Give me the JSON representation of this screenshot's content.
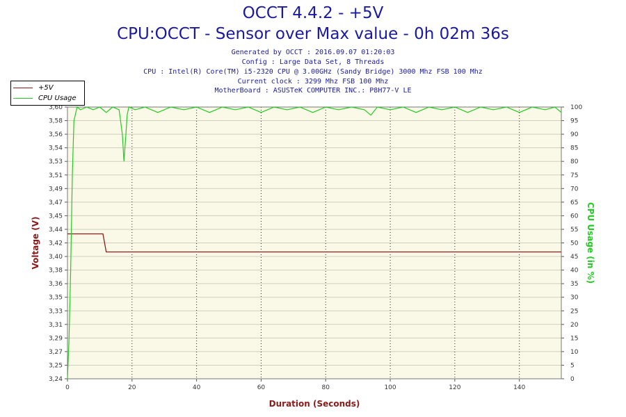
{
  "header": {
    "title": "OCCT 4.4.2 - +5V",
    "subtitle": "CPU:OCCT - Sensor over Max value - 0h 02m 36s",
    "info_lines": [
      "Generated by OCCT : 2016.09.07 01:20:03",
      "Config : Large Data Set, 8 Threads",
      "CPU : Intel(R) Core(TM) i5-2320 CPU @ 3.00GHz (Sandy Bridge) 3000 Mhz FSB 100 Mhz",
      "Current clock : 3299 Mhz FSB 100 Mhz",
      "MotherBoard : ASUSTeK COMPUTER INC.: P8H77-V LE"
    ]
  },
  "legend": [
    {
      "label": "+5V",
      "color": "#8b1a1a"
    },
    {
      "label": "CPU Usage",
      "color": "#22cc22"
    }
  ],
  "colors": {
    "plot_bg": "#faf8e6",
    "voltage": "#8b1a1a",
    "cpu": "#22cc22",
    "title": "#1a1aa0",
    "left_axis": "#8b1a1a",
    "right_axis": "#22cc22",
    "x_axis": "#8b1a1a"
  },
  "chart_data": {
    "type": "line",
    "title": "OCCT 4.4.2 - +5V",
    "xlabel": "Duration (Seconds)",
    "ylabel_left": "Voltage (V)",
    "ylabel_right": "CPU Usage (in %)",
    "xlim": [
      0,
      153
    ],
    "ylim_left": [
      3.24,
      3.6
    ],
    "ylim_right": [
      0,
      100
    ],
    "x_ticks": [
      "0",
      "20",
      "40",
      "60",
      "80",
      "100",
      "120",
      "140"
    ],
    "x_tick_values": [
      0,
      20,
      40,
      60,
      80,
      100,
      120,
      140
    ],
    "y_left_ticks": [
      "3,60",
      "3,58",
      "3,56",
      "3,54",
      "3,53",
      "3,51",
      "3,49",
      "3,47",
      "3,45",
      "3,44",
      "3,42",
      "3,40",
      "3,38",
      "3,36",
      "3,35",
      "3,33",
      "3,31",
      "3,29",
      "3,27",
      "3,25",
      "3,24"
    ],
    "y_right_ticks": [
      "100",
      "95",
      "90",
      "85",
      "80",
      "75",
      "70",
      "65",
      "60",
      "55",
      "50",
      "45",
      "40",
      "35",
      "30",
      "25",
      "20",
      "15",
      "10",
      "5",
      "0"
    ],
    "grid": true,
    "legend_position": "top-left",
    "series": [
      {
        "name": "+5V",
        "axis": "left",
        "x": [
          0,
          11,
          12,
          153
        ],
        "y": [
          3.432,
          3.432,
          3.408,
          3.408
        ]
      },
      {
        "name": "CPU Usage",
        "axis": "right",
        "x": [
          0,
          0.5,
          1,
          1.5,
          2,
          3,
          4,
          6,
          8,
          10,
          12,
          14,
          16,
          17,
          17.5,
          18,
          18.5,
          19,
          21,
          24,
          28,
          32,
          36,
          40,
          44,
          48,
          52,
          56,
          60,
          64,
          68,
          72,
          76,
          80,
          84,
          88,
          92,
          94,
          96,
          100,
          104,
          108,
          112,
          116,
          120,
          124,
          128,
          132,
          136,
          140,
          144,
          148,
          151,
          153
        ],
        "y": [
          0,
          15,
          40,
          75,
          95,
          100,
          99,
          100,
          99,
          100,
          98,
          100,
          99,
          90,
          80,
          88,
          97,
          100,
          99,
          100,
          98,
          100,
          99,
          100,
          98,
          100,
          99,
          100,
          98,
          100,
          99,
          100,
          98,
          100,
          99,
          100,
          99,
          97,
          100,
          99,
          100,
          98,
          100,
          99,
          100,
          98,
          100,
          99,
          100,
          98,
          100,
          99,
          100,
          98
        ]
      }
    ]
  }
}
